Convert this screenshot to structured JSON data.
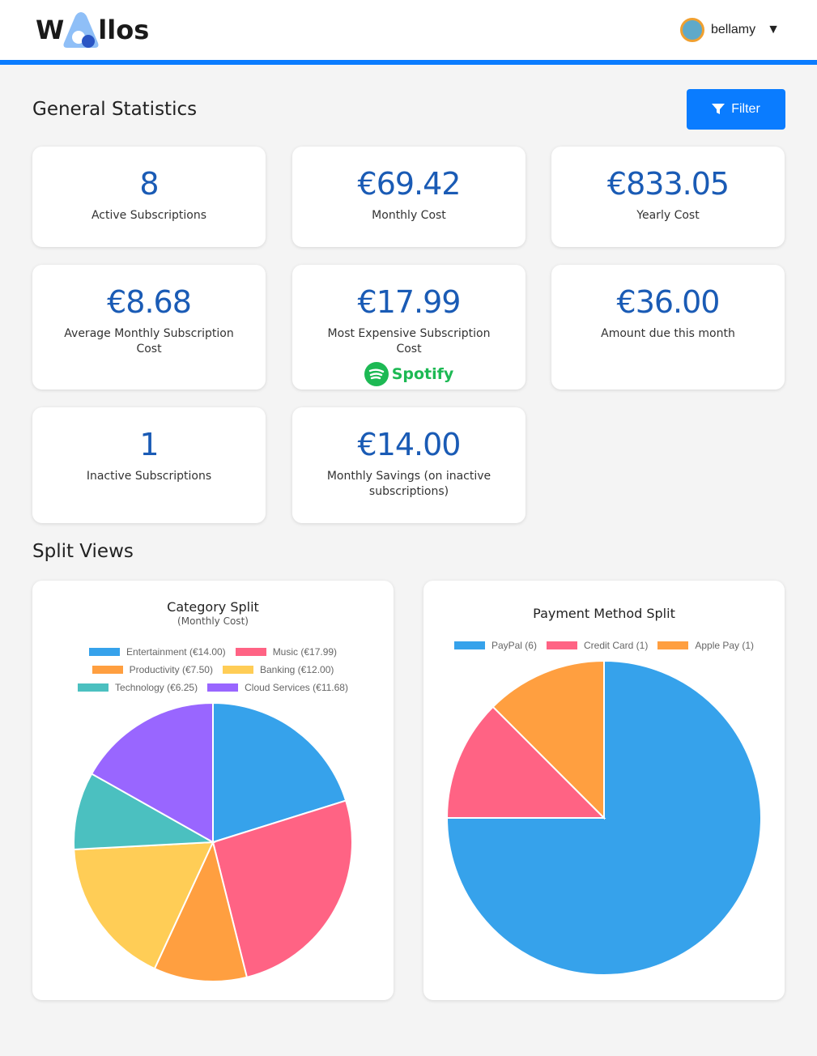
{
  "header": {
    "logo_text": "Wallos",
    "username": "bellamy",
    "dropdown_icon": "caret-down-icon"
  },
  "general": {
    "title": "General Statistics",
    "filter_label": "Filter",
    "cards": [
      {
        "value": "8",
        "label": "Active Subscriptions"
      },
      {
        "value": "€69.42",
        "label": "Monthly Cost"
      },
      {
        "value": "€833.05",
        "label": "Yearly Cost"
      },
      {
        "value": "€8.68",
        "label": "Average Monthly Subscription Cost"
      },
      {
        "value": "€17.99",
        "label": "Most Expensive Subscription Cost",
        "logo": "Spotify"
      },
      {
        "value": "€36.00",
        "label": "Amount due this month"
      },
      {
        "value": "1",
        "label": "Inactive Subscriptions"
      },
      {
        "value": "€14.00",
        "label": "Monthly Savings (on inactive subscriptions)"
      }
    ]
  },
  "split": {
    "title": "Split Views"
  },
  "chart_data": [
    {
      "type": "pie",
      "title": "Category Split",
      "subtitle": "(Monthly Cost)",
      "legend": "top",
      "series": [
        {
          "name": "Entertainment (€14.00)",
          "value": 14.0,
          "color": "#36a2eb"
        },
        {
          "name": "Music (€17.99)",
          "value": 17.99,
          "color": "#ff6384"
        },
        {
          "name": "Productivity (€7.50)",
          "value": 7.5,
          "color": "#ff9f40"
        },
        {
          "name": "Banking (€12.00)",
          "value": 12.0,
          "color": "#ffcd56"
        },
        {
          "name": "Technology (€6.25)",
          "value": 6.25,
          "color": "#4bc0c0"
        },
        {
          "name": "Cloud Services (€11.68)",
          "value": 11.68,
          "color": "#9966ff"
        }
      ]
    },
    {
      "type": "pie",
      "title": "Payment Method Split",
      "legend": "top",
      "series": [
        {
          "name": "PayPal (6)",
          "value": 6,
          "color": "#36a2eb"
        },
        {
          "name": "Credit Card (1)",
          "value": 1,
          "color": "#ff6384"
        },
        {
          "name": "Apple Pay (1)",
          "value": 1,
          "color": "#ff9f40"
        }
      ]
    }
  ]
}
